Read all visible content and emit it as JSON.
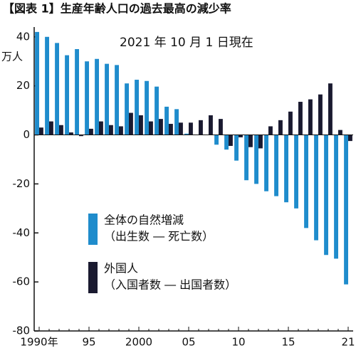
{
  "chart_data": {
    "type": "bar",
    "title": "【図表 1】生産年齢人口の過去最高の減少率",
    "annotation": "2021 年 10 月 1 日現在",
    "y_label": "万人",
    "categories": [
      "1990年",
      null,
      null,
      null,
      null,
      "95",
      null,
      null,
      null,
      null,
      "2000",
      null,
      null,
      null,
      null,
      "05",
      null,
      null,
      null,
      null,
      "10",
      null,
      null,
      null,
      null,
      "15",
      null,
      null,
      null,
      null,
      null,
      "21"
    ],
    "series": [
      {
        "name": "全体の自然増減",
        "note": "（出生数 ― 死亡数）",
        "color": "#1f8ccc",
        "values": [
          42,
          40,
          37.5,
          32.5,
          35,
          30,
          31,
          29,
          28.5,
          21,
          22.5,
          22,
          19.7,
          11.5,
          10.5,
          0.5,
          0,
          0,
          -4,
          -6,
          -10.5,
          -18.5,
          -20,
          -23,
          -25,
          -27.5,
          -30,
          -38,
          -43,
          -49,
          -50.5,
          -61
        ]
      },
      {
        "name": "外国人",
        "note": "（入国者数 ― 出国者数）",
        "color": "#1a1a30",
        "values": [
          3,
          5.5,
          4,
          1,
          -0.5,
          2.5,
          5.5,
          4,
          3.5,
          9,
          8,
          5.5,
          6.5,
          4.5,
          5,
          5,
          6,
          8,
          6.5,
          -4.5,
          -1,
          -5,
          -5.5,
          3.5,
          6,
          9.5,
          13.5,
          14.5,
          16.5,
          21,
          2,
          -2.5
        ]
      }
    ],
    "ylim": [
      -80,
      44
    ],
    "yticks": [
      40,
      20,
      0,
      -20,
      -40,
      -60,
      -80
    ]
  }
}
